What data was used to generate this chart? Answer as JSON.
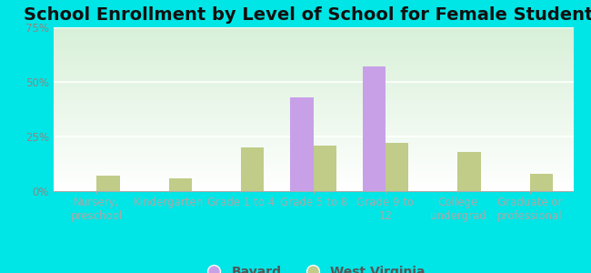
{
  "title": "School Enrollment by Level of School for Female Students",
  "categories": [
    "Nursery,\npreschool",
    "Kindergarten",
    "Grade 1 to 4",
    "Grade 5 to 8",
    "Grade 9 to\n12",
    "College\nundergrad",
    "Graduate or\nprofessional"
  ],
  "bayard_values": [
    0,
    0,
    0,
    43,
    57,
    0,
    0
  ],
  "wv_values": [
    7,
    6,
    20,
    21,
    22,
    18,
    8
  ],
  "bayard_color": "#c8a0e8",
  "wv_color": "#c0cc88",
  "background_color": "#00e5e5",
  "plot_bg_top": "#ffffff",
  "plot_bg_bottom": "#d8f0d8",
  "ylim": [
    0,
    75
  ],
  "yticks": [
    0,
    25,
    50,
    75
  ],
  "ytick_labels": [
    "0%",
    "25%",
    "50%",
    "75%"
  ],
  "legend_labels": [
    "Bayard",
    "West Virginia"
  ],
  "title_fontsize": 14,
  "tick_fontsize": 8.5,
  "legend_fontsize": 10,
  "bar_width": 0.32
}
